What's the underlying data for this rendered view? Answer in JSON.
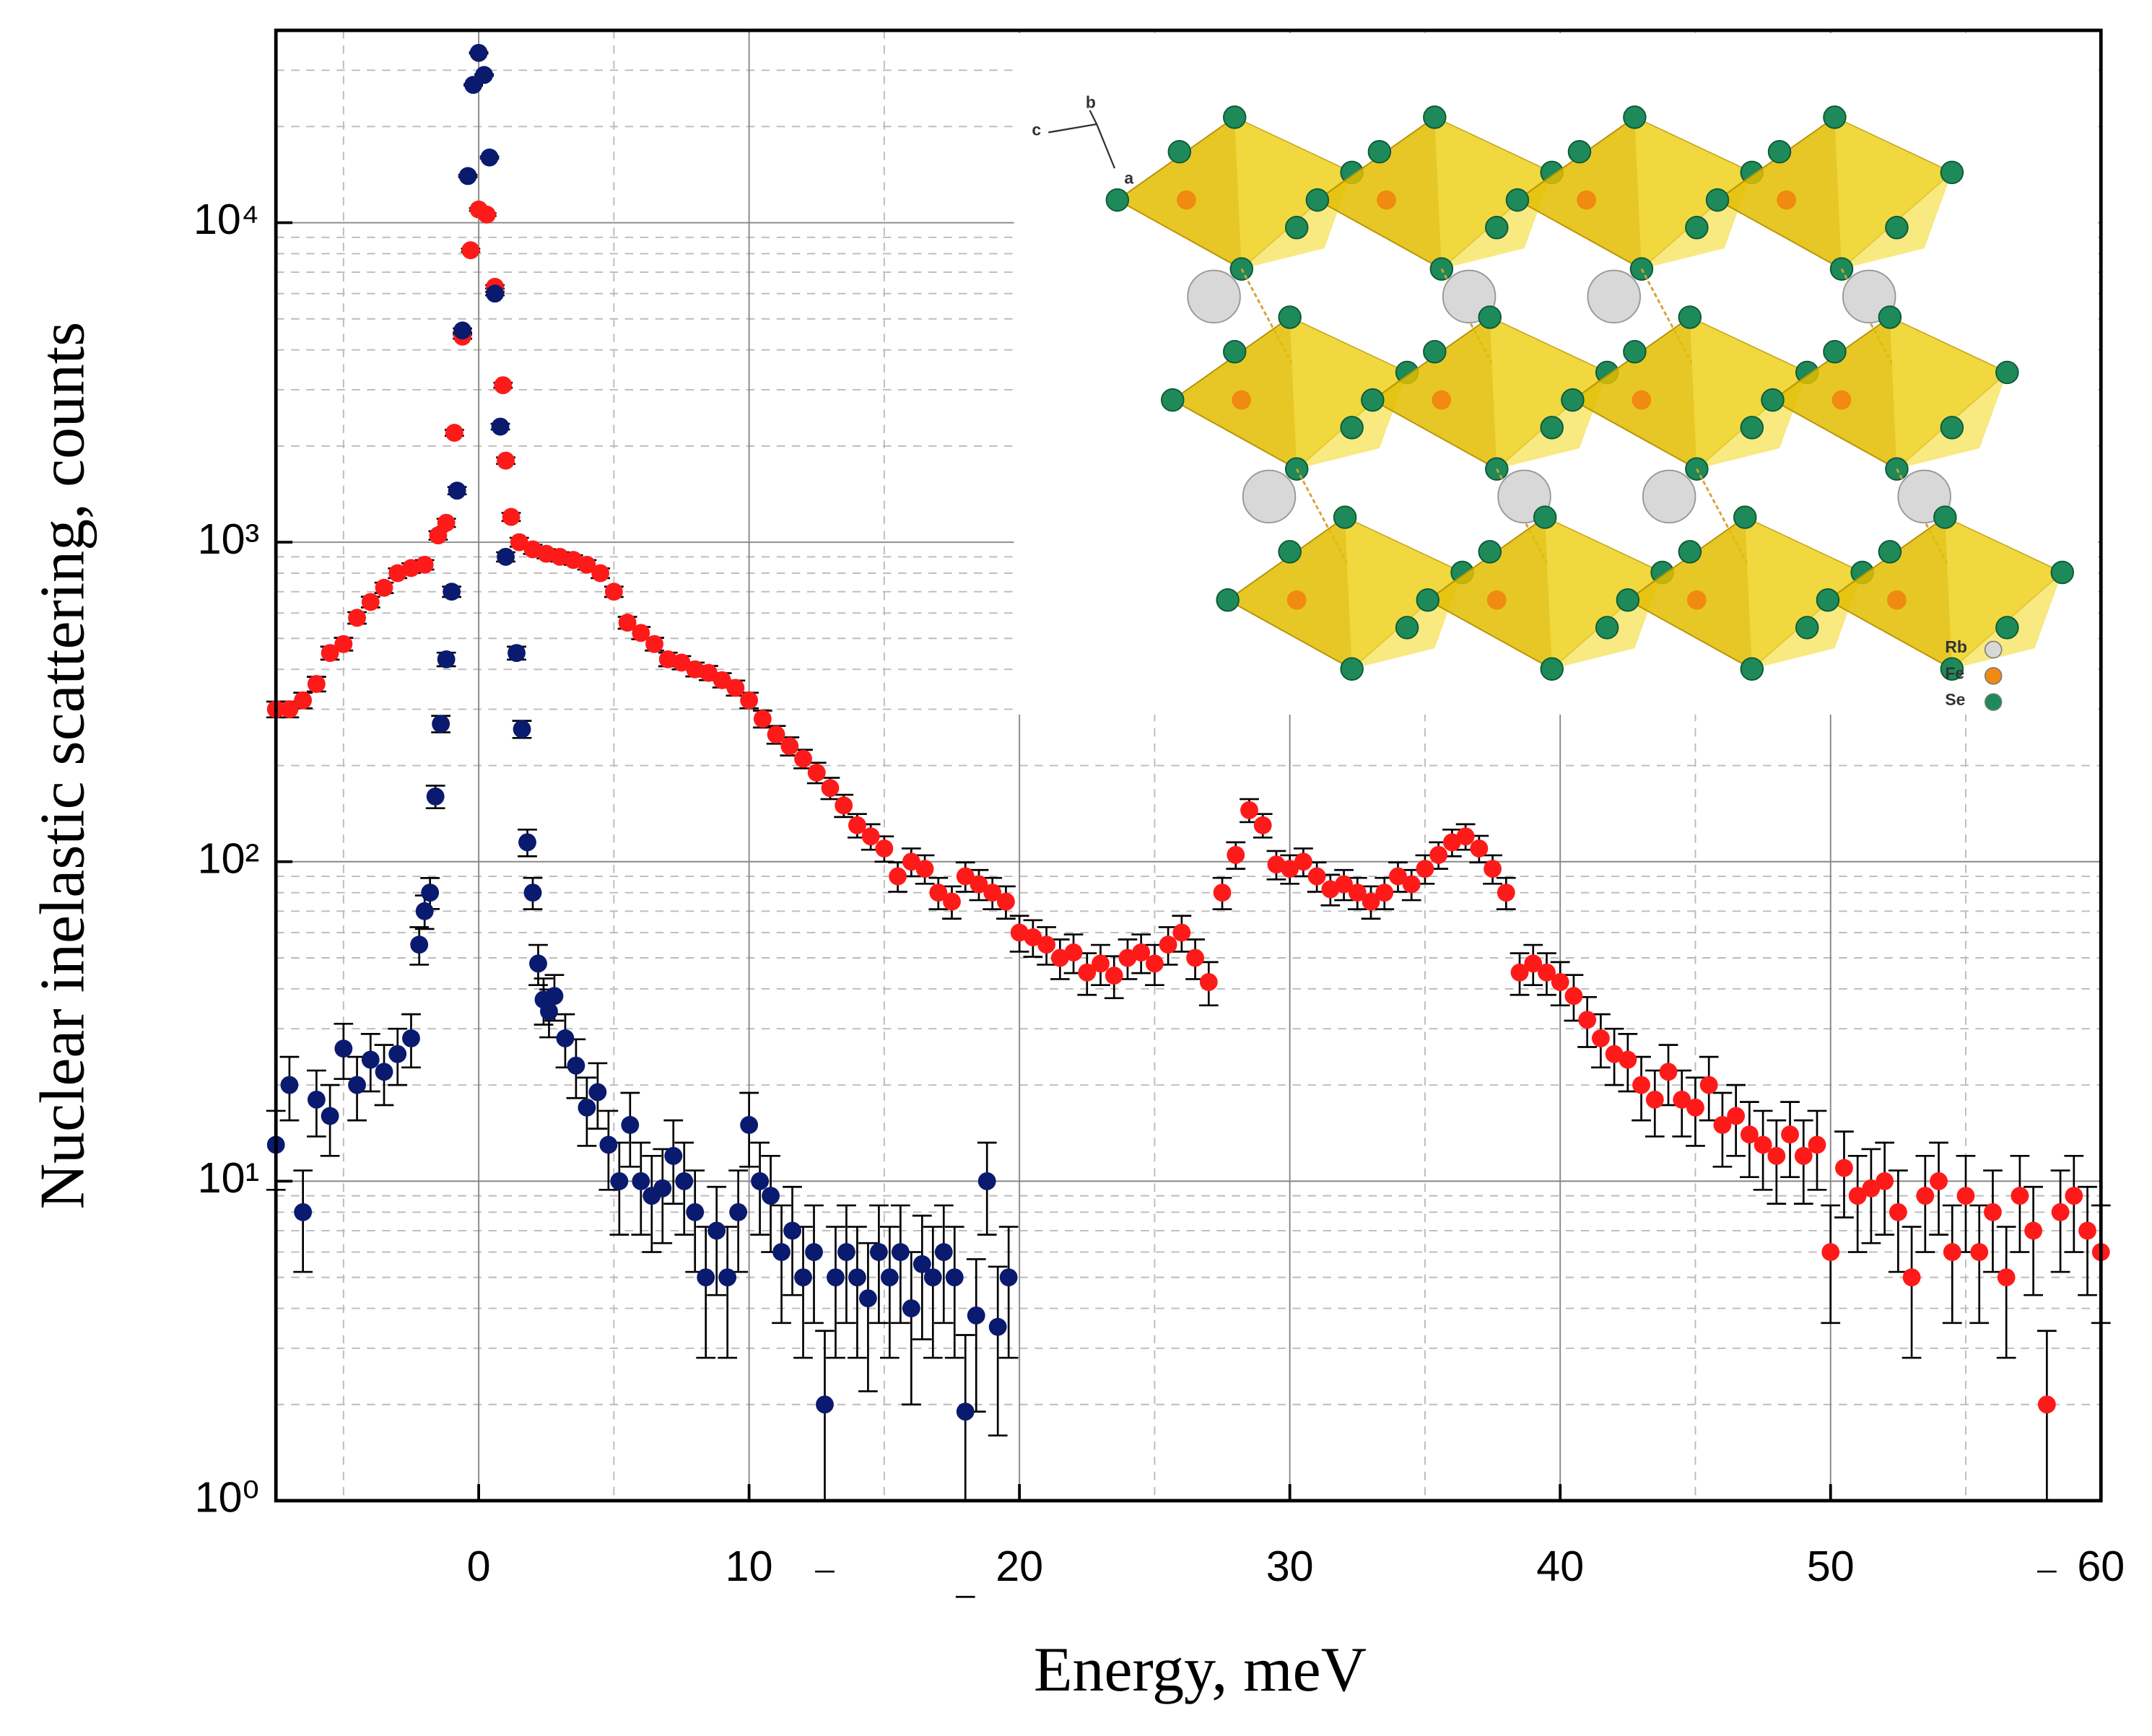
{
  "chart_data": {
    "type": "scatter",
    "xlabel": "Energy, meV",
    "ylabel": "Nuclear inelastic scattering, counts",
    "xlim": [
      -7.5,
      60
    ],
    "ylim": [
      1,
      40000
    ],
    "log_y": true,
    "grid": true,
    "xticks": [
      0,
      10,
      20,
      30,
      40,
      50,
      60
    ],
    "yticks": [
      {
        "value": 1,
        "label": "10⁰"
      },
      {
        "value": 10,
        "label": "10¹"
      },
      {
        "value": 100,
        "label": "10²"
      },
      {
        "value": 1000,
        "label": "10³"
      },
      {
        "value": 10000,
        "label": "10⁴"
      }
    ],
    "xminor": [
      -5,
      5,
      15,
      25,
      35,
      45,
      55
    ],
    "yminor": [
      2,
      3,
      4,
      5,
      6,
      7,
      8,
      9,
      20,
      30,
      40,
      50,
      60,
      70,
      80,
      90,
      200,
      300,
      400,
      500,
      600,
      700,
      800,
      900,
      2000,
      3000,
      4000,
      5000,
      6000,
      7000,
      8000,
      9000,
      20000,
      30000
    ],
    "series": [
      {
        "color": "#ff1a1a",
        "x": [
          -7.5,
          -7,
          -6.5,
          -6,
          -5.5,
          -5,
          -4.5,
          -4,
          -3.5,
          -3,
          -2.5,
          -2,
          -1.5,
          -1.2,
          -0.9,
          -0.6,
          -0.3,
          0,
          0.3,
          0.6,
          0.9,
          1,
          1.2,
          1.5,
          2,
          2.5,
          3,
          3.5,
          4,
          4.5,
          5,
          5.5,
          6,
          6.5,
          7,
          7.5,
          8,
          8.5,
          9,
          9.5,
          10,
          10.5,
          11,
          11.5,
          12,
          12.5,
          13,
          13.5,
          14,
          14.5,
          15,
          15.5,
          16,
          16.5,
          17,
          17.5,
          18,
          18.5,
          19,
          19.5,
          20,
          20.5,
          21,
          21.5,
          22,
          22.5,
          23,
          23.5,
          24,
          24.5,
          25,
          25.5,
          26,
          26.5,
          27,
          27.5,
          28,
          28.5,
          29,
          29.5,
          30,
          30.5,
          31,
          31.5,
          32,
          32.5,
          33,
          33.5,
          34,
          34.5,
          35,
          35.5,
          36,
          36.5,
          37,
          37.5,
          38,
          38.5,
          39,
          39.5,
          40,
          40.5,
          41,
          41.5,
          42,
          42.5,
          43,
          43.5,
          44,
          44.5,
          45,
          45.5,
          46,
          46.5,
          47,
          47.5,
          48,
          48.5,
          49,
          49.5,
          50,
          50.5,
          51,
          51.5,
          52,
          52.5,
          53,
          53.5,
          54,
          54.5,
          55,
          55.5,
          56,
          56.5,
          57,
          57.5,
          58,
          58.5,
          59,
          59.5,
          60
        ],
        "values": [
          300,
          300,
          320,
          360,
          450,
          480,
          580,
          650,
          720,
          800,
          830,
          850,
          1050,
          1150,
          2200,
          4400,
          8200,
          11000,
          10600,
          6300,
          3100,
          1800,
          1200,
          1000,
          950,
          920,
          900,
          880,
          850,
          800,
          700,
          560,
          520,
          480,
          430,
          420,
          400,
          390,
          370,
          350,
          320,
          280,
          250,
          230,
          210,
          190,
          170,
          150,
          130,
          120,
          110,
          90,
          100,
          95,
          80,
          75,
          90,
          85,
          80,
          75,
          60,
          58,
          55,
          50,
          52,
          45,
          48,
          44,
          50,
          52,
          48,
          55,
          60,
          50,
          42,
          80,
          105,
          145,
          130,
          98,
          95,
          100,
          90,
          82,
          85,
          80,
          75,
          80,
          90,
          85,
          95,
          105,
          115,
          120,
          110,
          95,
          80,
          45,
          48,
          45,
          42,
          38,
          32,
          28,
          25,
          24,
          20,
          18,
          22,
          18,
          17,
          20,
          15,
          16,
          14,
          13,
          12,
          14,
          12,
          13,
          6,
          11,
          9,
          9.5,
          10,
          8,
          5,
          9,
          10,
          6,
          9,
          6,
          8,
          5,
          9,
          7,
          2,
          8,
          9,
          7,
          6
        ],
        "errors": [
          17,
          17,
          18,
          19,
          21,
          22,
          24,
          25,
          27,
          28,
          29,
          29,
          32,
          34,
          47,
          66,
          90,
          105,
          103,
          79,
          56,
          42,
          35,
          32,
          31,
          30,
          30,
          30,
          29,
          28,
          26,
          24,
          23,
          22,
          21,
          20,
          20,
          20,
          19,
          19,
          18,
          17,
          16,
          15,
          14,
          14,
          13,
          12,
          11,
          11,
          10,
          9.5,
          10,
          9.7,
          9,
          8.7,
          9.5,
          9.2,
          9,
          8.7,
          7.7,
          7.6,
          7.4,
          7.1,
          7.2,
          6.7,
          6.9,
          6.6,
          7.1,
          7.2,
          6.9,
          7.4,
          7.7,
          7.1,
          6.5,
          9,
          10,
          12,
          11,
          10,
          9.7,
          10,
          9.5,
          9,
          9.2,
          9,
          8.7,
          9,
          9.5,
          9.2,
          9.7,
          10,
          11,
          11,
          10.5,
          9.7,
          9,
          6.7,
          6.9,
          6.7,
          6.5,
          6.2,
          5.7,
          5.3,
          5,
          4.9,
          4.5,
          4.2,
          4.7,
          4.2,
          4.1,
          4.5,
          3.9,
          4,
          3.7,
          3.6,
          3.5,
          3.7,
          3.5,
          3.6,
          2.4,
          3.3,
          3,
          3.1,
          3.2,
          2.8,
          2.2,
          3,
          3.2,
          2.4,
          3,
          2.4,
          2.8,
          2.2,
          3,
          2.6,
          1.4,
          2.8,
          3,
          2.6,
          2.4
        ]
      },
      {
        "color": "#0a1a6e",
        "x": [
          -7.5,
          -7,
          -6.5,
          -6,
          -5.5,
          -5,
          -4.5,
          -4,
          -3.5,
          -3,
          -2.5,
          -2.2,
          -2,
          -1.8,
          -1.6,
          -1.4,
          -1.2,
          -1,
          -0.8,
          -0.6,
          -0.4,
          -0.2,
          0,
          0.2,
          0.4,
          0.6,
          0.8,
          1,
          1.4,
          1.6,
          1.8,
          2,
          2.2,
          2.4,
          2.6,
          2.8,
          3.2,
          3.6,
          4,
          4.4,
          4.8,
          5.2,
          5.6,
          6,
          6.4,
          6.8,
          7.2,
          7.6,
          8,
          8.4,
          8.8,
          9.2,
          9.6,
          10,
          10.4,
          10.8,
          11.2,
          11.6,
          12,
          12.4,
          12.8,
          13.2,
          13.6,
          14,
          14.4,
          14.8,
          15.2,
          15.6,
          16,
          16.4,
          16.8,
          17.2,
          17.6,
          18,
          18.4,
          18.8,
          19.2,
          19.6
        ],
        "values": [
          13,
          20,
          8,
          18,
          16,
          26,
          20,
          24,
          22,
          25,
          28,
          55,
          70,
          80,
          160,
          270,
          430,
          700,
          1450,
          4600,
          14000,
          27000,
          34000,
          29000,
          16000,
          6000,
          2300,
          900,
          450,
          260,
          115,
          80,
          48,
          37,
          34,
          38,
          28,
          23,
          17,
          19,
          13,
          10,
          15,
          10,
          9,
          9.5,
          12,
          10,
          8,
          5,
          7,
          5,
          8,
          15,
          10,
          9,
          6,
          7,
          5,
          6,
          2,
          5,
          6,
          5,
          4.3,
          6,
          5,
          6,
          4,
          5.5,
          5,
          6,
          5,
          1.9,
          3.8,
          10,
          3.5,
          5
        ],
        "errors": [
          3.6,
          4.5,
          2.8,
          4.2,
          4,
          5.1,
          4.5,
          4.9,
          4.7,
          5,
          5.3,
          7.4,
          8.4,
          8.9,
          13,
          16,
          21,
          26,
          38,
          68,
          118,
          164,
          184,
          170,
          126,
          77,
          48,
          30,
          21,
          16,
          11,
          9,
          6.9,
          6.1,
          5.8,
          6.2,
          5.3,
          4.8,
          4.1,
          4.4,
          3.6,
          3.2,
          3.9,
          3.2,
          3,
          3.1,
          3.5,
          3.2,
          2.8,
          2.2,
          2.6,
          2.2,
          2.8,
          3.9,
          3.2,
          3,
          2.4,
          2.6,
          2.2,
          2.4,
          1.4,
          2.2,
          2.4,
          2.2,
          2.1,
          2.4,
          2.2,
          2.4,
          2,
          2.3,
          2.2,
          2.4,
          2.2,
          1.4,
          1.9,
          3.2,
          1.9,
          2.2
        ]
      }
    ],
    "inset": {
      "legend": [
        {
          "label": "Rb",
          "color": "#d8d8d8"
        },
        {
          "label": "Fe",
          "color": "#f08a10"
        },
        {
          "label": "Se",
          "color": "#1e8a5a"
        }
      ],
      "axes": [
        "c",
        "b",
        "a"
      ]
    }
  }
}
